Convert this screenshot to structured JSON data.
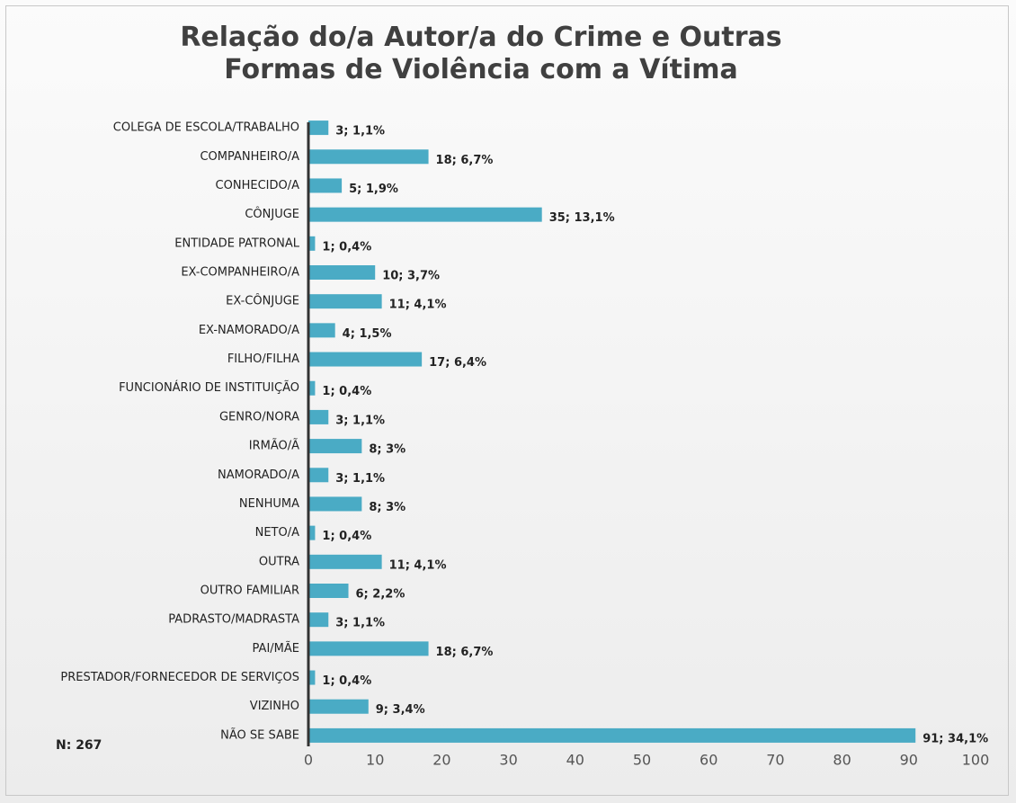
{
  "chart_data": {
    "type": "bar",
    "orientation": "horizontal",
    "title": "Relação do/a Autor/a do Crime e Outras Formas de Violência com a Vítima",
    "annotation": "N: 267",
    "categories": [
      "COLEGA DE ESCOLA/TRABALHO",
      "COMPANHEIRO/A",
      "CONHECIDO/A",
      "CÔNJUGE",
      "ENTIDADE PATRONAL",
      "EX-COMPANHEIRO/A",
      "EX-CÔNJUGE",
      "EX-NAMORADO/A",
      "FILHO/FILHA",
      "FUNCIONÁRIO DE INSTITUIÇÃO",
      "GENRO/NORA",
      "IRMÃO/Ã",
      "NAMORADO/A",
      "NENHUMA",
      "NETO/A",
      "OUTRA",
      "OUTRO FAMILIAR",
      "PADRASTO/MADRASTA",
      "PAI/MÃE",
      "PRESTADOR/FORNECEDOR DE SERVIÇOS",
      "VIZINHO",
      "NÃO SE SABE"
    ],
    "values": [
      3,
      18,
      5,
      35,
      1,
      10,
      11,
      4,
      17,
      1,
      3,
      8,
      3,
      8,
      1,
      11,
      6,
      3,
      18,
      1,
      9,
      91
    ],
    "value_labels": [
      "3; 1,1%",
      "18; 6,7%",
      "5; 1,9%",
      "35; 13,1%",
      "1; 0,4%",
      "10; 3,7%",
      "11; 4,1%",
      "4; 1,5%",
      "17; 6,4%",
      "1; 0,4%",
      "3; 1,1%",
      "8; 3%",
      "3; 1,1%",
      "8; 3%",
      "1; 0,4%",
      "11; 4,1%",
      "6; 2,2%",
      "3; 1,1%",
      "18; 6,7%",
      "1; 0,4%",
      "9; 3,4%",
      "91; 34,1%"
    ],
    "color": "#4aabc5",
    "xlim": [
      0,
      100
    ],
    "xticks": [
      0,
      10,
      20,
      30,
      40,
      50,
      60,
      70,
      80,
      90,
      100
    ],
    "grid": false
  }
}
